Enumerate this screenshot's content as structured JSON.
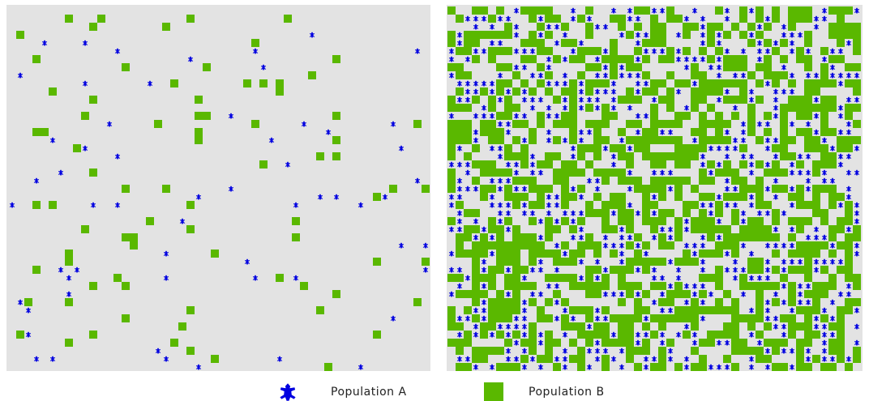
{
  "legend": [
    "Population A",
    "Population B"
  ]
}
